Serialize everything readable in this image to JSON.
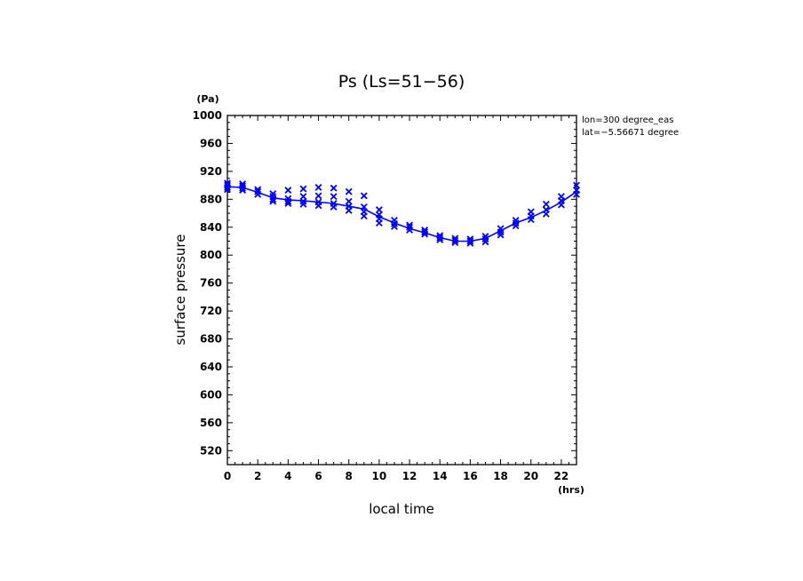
{
  "chart_data": {
    "type": "line",
    "title": "Ps (Ls=51−56)",
    "xlabel": "local time",
    "ylabel": "surface pressure",
    "xunit": "(hrs)",
    "yunit": "(Pa)",
    "annotations": [
      "lon=300 degree_eas",
      "lat=−5.56671 degree"
    ],
    "xlim": [
      0,
      23
    ],
    "ylim": [
      500,
      1000
    ],
    "xticks": [
      "0",
      "2",
      "4",
      "6",
      "8",
      "10",
      "12",
      "14",
      "16",
      "18",
      "20",
      "22"
    ],
    "yticks": [
      "520",
      "560",
      "600",
      "640",
      "680",
      "720",
      "760",
      "800",
      "840",
      "880",
      "920",
      "960",
      "1000"
    ],
    "grid": false,
    "color": "#0000ff",
    "series": [
      {
        "type": "line",
        "x": [
          0,
          1,
          2,
          3,
          4,
          5,
          6,
          7,
          8,
          9,
          10,
          11,
          12,
          13,
          14,
          15,
          16,
          17,
          18,
          19,
          20,
          21,
          22,
          23
        ],
        "y": [
          898,
          897,
          890,
          882,
          879,
          878,
          876,
          874,
          870,
          866,
          855,
          846,
          838,
          832,
          825,
          820,
          820,
          824,
          835,
          846,
          854,
          864,
          876,
          891
        ]
      },
      {
        "type": "scatter",
        "marker": "x",
        "x": [
          0,
          0,
          0,
          0,
          1,
          1,
          1,
          1,
          2,
          2,
          2,
          3,
          3,
          3,
          3,
          4,
          4,
          4,
          4,
          5,
          5,
          5,
          5,
          6,
          6,
          6,
          6,
          7,
          7,
          7,
          7,
          8,
          8,
          8,
          8,
          9,
          9,
          9,
          9,
          10,
          10,
          10,
          10,
          11,
          11,
          11,
          12,
          12,
          12,
          13,
          13,
          13,
          14,
          14,
          14,
          15,
          15,
          15,
          16,
          16,
          16,
          17,
          17,
          17,
          18,
          18,
          18,
          19,
          19,
          19,
          20,
          20,
          20,
          21,
          21,
          21,
          22,
          22,
          22,
          23,
          23,
          23
        ],
        "y": [
          903,
          900,
          897,
          894,
          902,
          899,
          896,
          893,
          894,
          891,
          887,
          888,
          884,
          880,
          877,
          893,
          881,
          877,
          874,
          895,
          884,
          877,
          873,
          897,
          885,
          876,
          871,
          896,
          884,
          874,
          869,
          891,
          877,
          870,
          864,
          885,
          869,
          862,
          856,
          865,
          858,
          852,
          846,
          850,
          845,
          841,
          843,
          840,
          836,
          836,
          833,
          830,
          828,
          825,
          822,
          824,
          821,
          818,
          823,
          820,
          817,
          827,
          823,
          819,
          838,
          833,
          829,
          850,
          846,
          842,
          862,
          856,
          851,
          873,
          865,
          859,
          884,
          878,
          872,
          900,
          893,
          887
        ]
      }
    ]
  }
}
